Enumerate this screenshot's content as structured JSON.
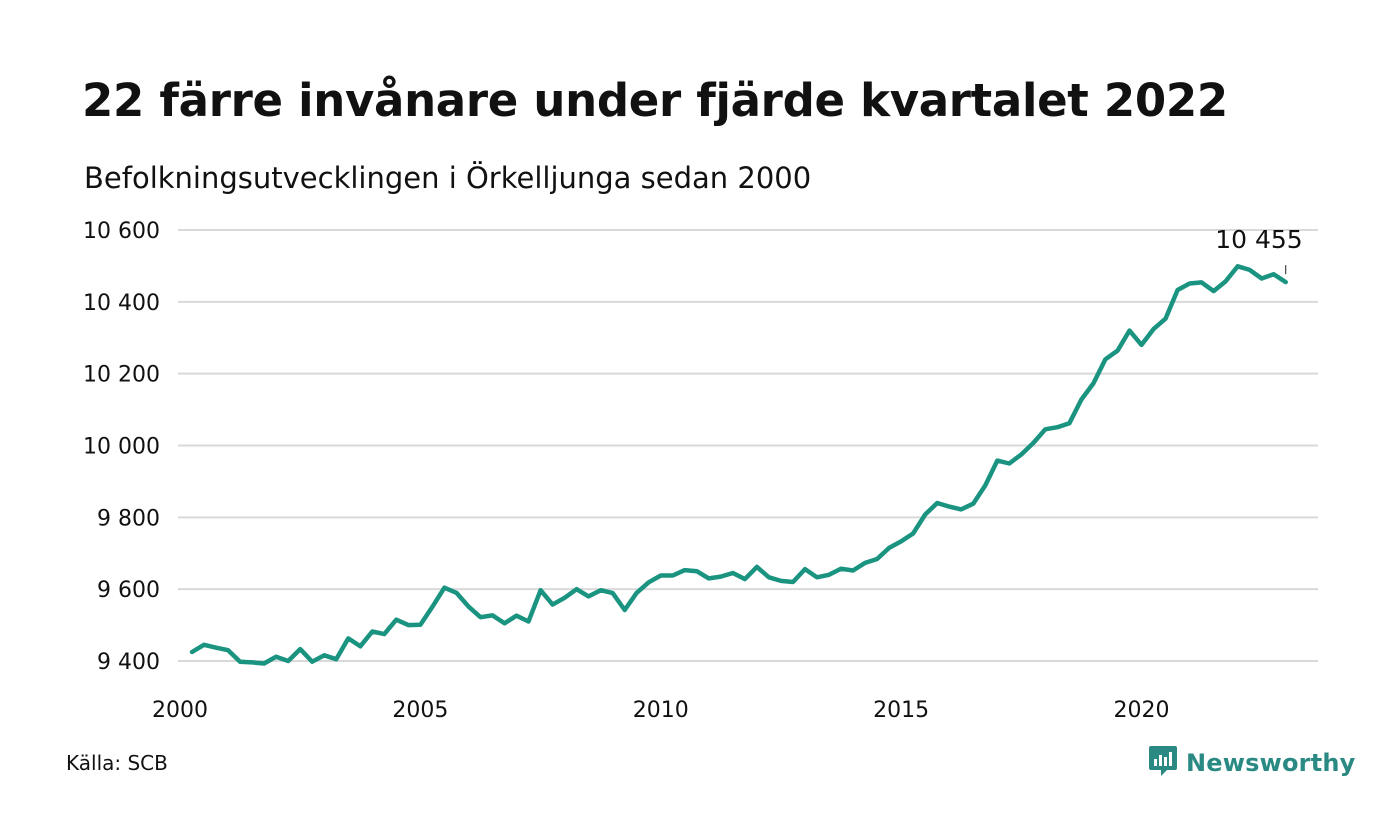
{
  "title": "22 färre invånare under fjärde kvartalet 2022",
  "subtitle": "Befolkningsutvecklingen i Örkelljunga sedan 2000",
  "source": "Källa: SCB",
  "brand": {
    "name": "Newsworthy",
    "icon": "newsworthy-logo-icon",
    "color": "#2a8a83"
  },
  "chart_data": {
    "type": "line",
    "title": "22 färre invånare under fjärde kvartalet 2022",
    "subtitle": "Befolkningsutvecklingen i Örkelljunga sedan 2000",
    "xlabel": "",
    "ylabel": "",
    "xlim": [
      2000,
      2023.5
    ],
    "ylim": [
      9360,
      10640
    ],
    "x_ticks": [
      2000,
      2005,
      2010,
      2015,
      2020
    ],
    "x_tick_labels": [
      "2000",
      "2005",
      "2010",
      "2015",
      "2020"
    ],
    "y_ticks": [
      9400,
      9600,
      9800,
      10000,
      10200,
      10400,
      10600
    ],
    "y_tick_labels": [
      "9 400",
      "9 600",
      "9 800",
      "10 000",
      "10 200",
      "10 400",
      "10 600"
    ],
    "grid": true,
    "line_color": "#1a9480",
    "end_label": "10 455",
    "series": [
      {
        "x": [
          2000.25,
          2000.5,
          2000.75,
          2001,
          2001.25,
          2001.5,
          2001.75,
          2002,
          2002.25,
          2002.5,
          2002.75,
          2003,
          2003.25,
          2003.5,
          2003.75,
          2004,
          2004.25,
          2004.5,
          2004.75,
          2005,
          2005.25,
          2005.5,
          2005.75,
          2006,
          2006.25,
          2006.5,
          2006.75,
          2007,
          2007.25,
          2007.5,
          2007.75,
          2008,
          2008.25,
          2008.5,
          2008.75,
          2009,
          2009.25,
          2009.5,
          2009.75,
          2010,
          2010.25,
          2010.5,
          2010.75,
          2011,
          2011.25,
          2011.5,
          2011.75,
          2012,
          2012.25,
          2012.5,
          2012.75,
          2013,
          2013.25,
          2013.5,
          2013.75,
          2014,
          2014.25,
          2014.5,
          2014.75,
          2015,
          2015.25,
          2015.5,
          2015.75,
          2016,
          2016.25,
          2016.5,
          2016.75,
          2017,
          2017.25,
          2017.5,
          2017.75,
          2018,
          2018.25,
          2018.5,
          2018.75,
          2019,
          2019.25,
          2019.5,
          2019.75,
          2020,
          2020.25,
          2020.5,
          2020.75,
          2021,
          2021.25,
          2021.5,
          2021.75,
          2022,
          2022.25,
          2022.5,
          2022.75,
          2023
        ],
        "values": [
          9425,
          9445,
          9437,
          9430,
          9398,
          9396,
          9393,
          9412,
          9400,
          9433,
          9398,
          9416,
          9405,
          9463,
          9441,
          9482,
          9475,
          9515,
          9500,
          9501,
          9551,
          9604,
          9590,
          9552,
          9522,
          9527,
          9505,
          9526,
          9510,
          9597,
          9557,
          9576,
          9600,
          9580,
          9597,
          9589,
          9542,
          9590,
          9619,
          9638,
          9638,
          9653,
          9650,
          9630,
          9635,
          9645,
          9628,
          9662,
          9633,
          9623,
          9620,
          9656,
          9633,
          9640,
          9657,
          9652,
          9673,
          9684,
          9715,
          9733,
          9755,
          9808,
          9840,
          9830,
          9822,
          9838,
          9889,
          9958,
          9950,
          9975,
          10007,
          10045,
          10051,
          10062,
          10128,
          10173,
          10240,
          10264,
          10320,
          10280,
          10324,
          10353,
          10433,
          10451,
          10454,
          10430,
          10457,
          10499,
          10489,
          10465,
          10477,
          10455
        ]
      }
    ]
  }
}
